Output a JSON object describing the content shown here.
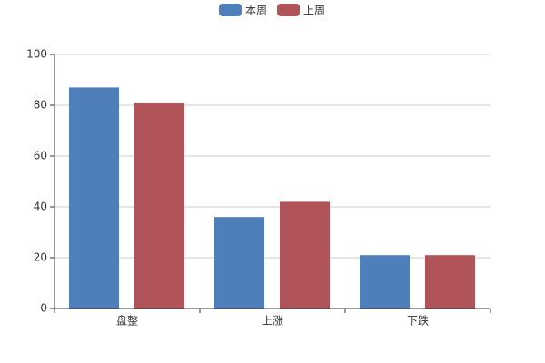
{
  "chart_data": {
    "type": "bar",
    "categories": [
      "盘整",
      "上涨",
      "下跌"
    ],
    "series": [
      {
        "name": "本周",
        "color": "#4f7fbb",
        "values": [
          87,
          36,
          21
        ]
      },
      {
        "name": "上周",
        "color": "#b0545a",
        "values": [
          81,
          42,
          21
        ]
      }
    ],
    "ylim": [
      0,
      100
    ],
    "yticks": [
      0,
      20,
      40,
      60,
      80,
      100
    ],
    "grid": true,
    "legend": "top"
  }
}
